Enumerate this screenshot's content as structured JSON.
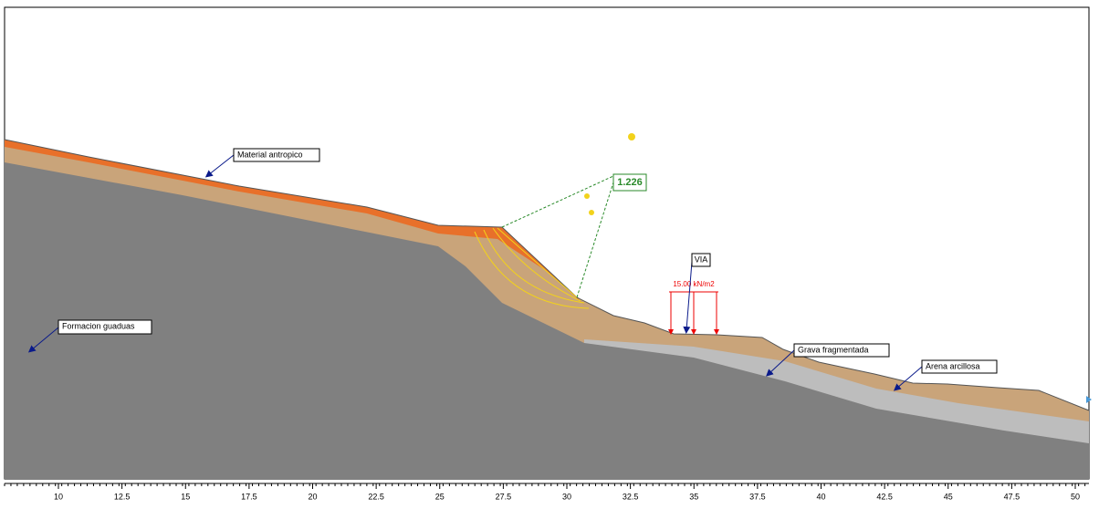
{
  "labels": {
    "material_antropico": "Material antropico",
    "formacion_guaduas": "Formacion guaduas",
    "grava_fragmentada": "Grava fragmentada",
    "arena_arcillosa": "Arena arcillosa",
    "via": "VIA"
  },
  "factor_of_safety": "1.226",
  "load": "15.00 kN/m2",
  "x_axis": {
    "ticks": [
      10,
      12.5,
      15,
      17.5,
      20,
      22.5,
      25,
      27.5,
      30,
      32.5,
      35,
      37.5,
      40,
      42.5,
      45,
      47.5,
      50
    ]
  }
}
